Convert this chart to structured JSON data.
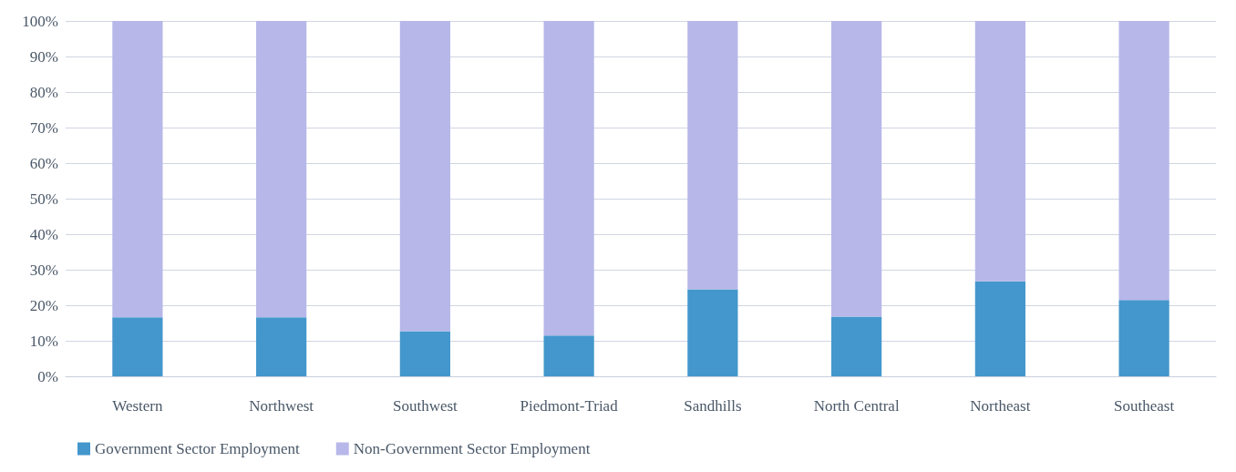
{
  "chart_data": {
    "type": "bar",
    "stacked": true,
    "categories": [
      "Western",
      "Northwest",
      "Southwest",
      "Piedmont-Triad",
      "Sandhills",
      "North Central",
      "Northeast",
      "Southeast"
    ],
    "series": [
      {
        "name": "Government Sector Employment",
        "color": "#4397cc",
        "values": [
          16.6,
          16.6,
          12.7,
          11.5,
          24.5,
          16.8,
          26.7,
          21.5
        ]
      },
      {
        "name": "Non-Government Sector Employment",
        "color": "#b7b7e9",
        "values": [
          83.4,
          83.4,
          87.3,
          88.5,
          75.5,
          83.2,
          73.3,
          78.5
        ]
      }
    ],
    "ylim": [
      0,
      100
    ],
    "yticks": [
      {
        "value": 0,
        "label": "0%"
      },
      {
        "value": 10,
        "label": "10%"
      },
      {
        "value": 20,
        "label": "20%"
      },
      {
        "value": 30,
        "label": "30%"
      },
      {
        "value": 40,
        "label": "40%"
      },
      {
        "value": 50,
        "label": "50%"
      },
      {
        "value": 60,
        "label": "60%"
      },
      {
        "value": 70,
        "label": "70%"
      },
      {
        "value": 80,
        "label": "80%"
      },
      {
        "value": 90,
        "label": "90%"
      },
      {
        "value": 100,
        "label": "100%"
      }
    ],
    "grid": "y",
    "legend": "bottom left"
  }
}
